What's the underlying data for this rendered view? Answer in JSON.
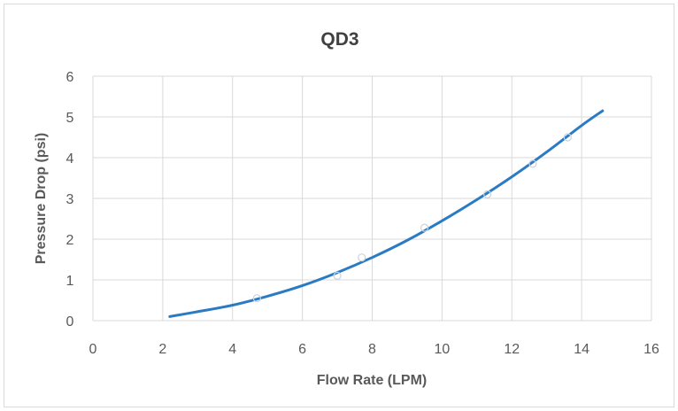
{
  "chart_data": {
    "type": "scatter",
    "title": "QD3",
    "xlabel": "Flow Rate (LPM)",
    "ylabel": "Pressure Drop (psi)",
    "xlim": [
      0,
      16
    ],
    "ylim": [
      0,
      6
    ],
    "xticks": [
      0,
      2,
      4,
      6,
      8,
      10,
      12,
      14,
      16
    ],
    "yticks": [
      0,
      1,
      2,
      3,
      4,
      5,
      6
    ],
    "grid": true,
    "legend": "none",
    "colors": {
      "trendline": "#2a7bc4",
      "markers": "#c9d3dc",
      "grid": "#d9d9d9"
    },
    "series": [
      {
        "type": "scatter",
        "x": [
          4.7,
          7.0,
          7.7,
          9.5,
          11.3,
          12.6,
          13.6
        ],
        "y": [
          0.55,
          1.1,
          1.55,
          2.28,
          3.1,
          3.85,
          4.5
        ]
      },
      {
        "type": "line",
        "x": [
          2.2,
          3.0,
          4.0,
          5.0,
          6.0,
          7.0,
          8.0,
          9.0,
          10.0,
          11.0,
          12.0,
          13.0,
          14.0,
          14.6
        ],
        "y": [
          0.1,
          0.22,
          0.38,
          0.6,
          0.86,
          1.18,
          1.55,
          1.97,
          2.45,
          2.97,
          3.53,
          4.14,
          4.79,
          5.15
        ]
      }
    ]
  }
}
